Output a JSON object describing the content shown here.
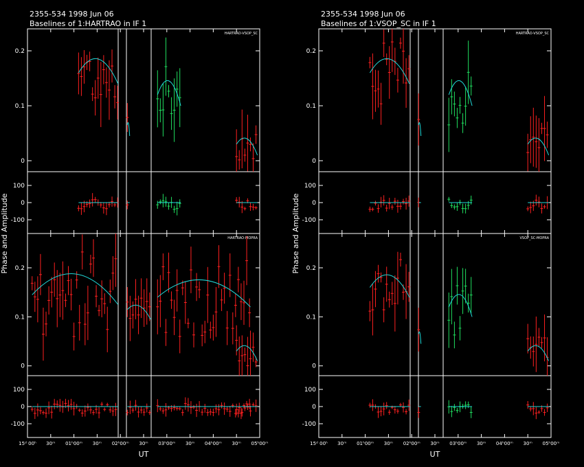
{
  "xlabel": "UT",
  "ylabel": "Phase and Amplitude",
  "colors": {
    "background": "#000000",
    "axes": "#ffffff",
    "data_a": "#ff2020",
    "data_b": "#20e060",
    "model": "#20d8d8"
  },
  "x_tick_labels": [
    "15ᵈ 00ʰ",
    "30ᵐ",
    "01ʰ00ᵐ",
    "30ᵐ",
    "02ʰ00ᵐ",
    "30ᵐ",
    "03ʰ00ᵐ",
    "30ᵐ",
    "04ʰ00ᵐ",
    "30ᵐ",
    "05ʰ00ᵐ"
  ],
  "chart_data": [
    {
      "type": "scatter",
      "title": "2355-534  1998 Jun 06",
      "subtitle": "Baselines of 1:HARTRAO in IF 1",
      "panels": [
        {
          "label": "HARTRAO-VSOP_SC",
          "amp_ylim": [
            -0.02,
            0.24
          ],
          "amp_ticks": [
            "0",
            "0.1",
            "0.2"
          ],
          "phase_ylim": [
            -180,
            180
          ],
          "phase_ticks": [
            "100",
            "0",
            "-100"
          ]
        },
        {
          "label": "HARTRAO-MOPRA",
          "amp_ylim": [
            -0.02,
            0.27
          ],
          "amp_ticks": [
            "0",
            "0.1",
            "0.2"
          ],
          "phase_ylim": [
            -180,
            180
          ],
          "phase_ticks": [
            "100",
            "0",
            "-100"
          ]
        }
      ]
    },
    {
      "type": "scatter",
      "title": "2355-534  1998 Jun 06",
      "subtitle": "Baselines of 1:VSOP_SC in IF 1",
      "panels": [
        {
          "label": "HARTRAO-VSOP_SC",
          "amp_ylim": [
            -0.02,
            0.24
          ],
          "amp_ticks": [
            "0",
            "0.1",
            "0.2"
          ],
          "phase_ylim": [
            -180,
            180
          ],
          "phase_ticks": [
            "100",
            "0",
            "-100"
          ]
        },
        {
          "label": "VSOP_SC-MOPRA",
          "amp_ylim": [
            -0.02,
            0.27
          ],
          "amp_ticks": [
            "0",
            "0.1",
            "0.2"
          ],
          "phase_ylim": [
            -180,
            180
          ],
          "phase_ticks": [
            "100",
            "0",
            "-100"
          ]
        }
      ]
    }
  ]
}
